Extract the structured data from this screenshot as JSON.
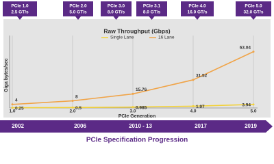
{
  "header": {
    "generations": [
      {
        "name": "PCIe 1.0",
        "rate": "2.5 GT/s"
      },
      {
        "name": "PCIe 2.0",
        "rate": "5.0 GT/s"
      },
      {
        "name": "PCIe 3.0",
        "rate": "8.0 GT/s"
      },
      {
        "name": "PCIe 3.1",
        "rate": "8.0 GT/s"
      },
      {
        "name": "PCIe 4.0",
        "rate": "16.0 GT/s"
      },
      {
        "name": "PCIe 5.0",
        "rate": "32.0 GT/s"
      }
    ]
  },
  "chart_data": {
    "type": "line",
    "title": "Raw Throughput (Gbps)",
    "xlabel": "PCIe Generation",
    "ylabel": "Giga bytes/sec",
    "x": [
      1,
      2,
      3,
      4,
      5
    ],
    "xlim": [
      1,
      5
    ],
    "xticks": [
      {
        "value": 1,
        "label": "1.0"
      },
      {
        "value": 2,
        "label": "2.0"
      },
      {
        "value": 3,
        "label": "3.0"
      },
      {
        "value": 4,
        "label": "4.0"
      },
      {
        "value": 5,
        "label": "5.0"
      }
    ],
    "ylim": [
      0,
      75
    ],
    "grid": true,
    "series": [
      {
        "name": "Single Lane",
        "color": "#f2d13a",
        "values": [
          0.25,
          0.5,
          0.985,
          1.97,
          3.94
        ]
      },
      {
        "name": "16 Lane",
        "color": "#f0a448",
        "values": [
          4,
          8,
          15.76,
          31.52,
          63.04
        ]
      }
    ]
  },
  "timeline": {
    "years": [
      "2002",
      "2006",
      "2010 - 13",
      "2017",
      "2019"
    ],
    "title": "PCIe Specification Progression"
  }
}
